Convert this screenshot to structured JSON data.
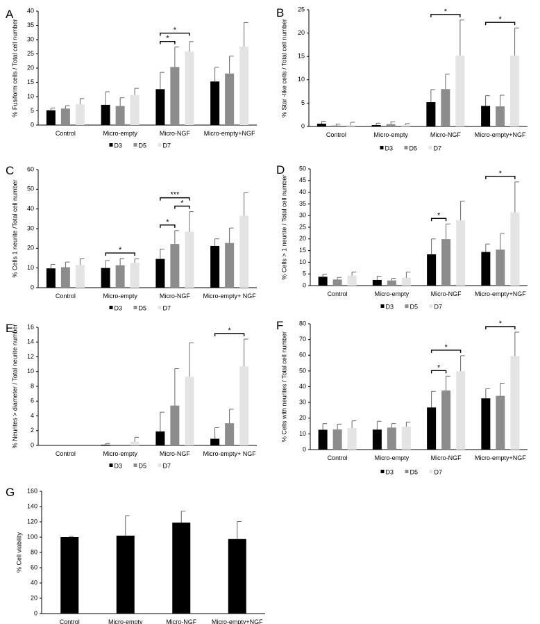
{
  "colors": {
    "D3": "#000000",
    "D5": "#8c8c8c",
    "D7": "#e4e4e4"
  },
  "chart_data": [
    {
      "panel_label": "A",
      "type": "bar",
      "ylabel": "% Fusiform cells / Total cell number",
      "ylim": [
        0,
        40
      ],
      "yticks": [
        0,
        5,
        10,
        15,
        20,
        25,
        30,
        35,
        40
      ],
      "categories": [
        "Control",
        "Micro-empty",
        "Micro-NGF",
        "Micro-empty+NGF"
      ],
      "series": [
        {
          "name": "D3",
          "values": [
            5.2,
            7.1,
            12.6,
            15.3
          ],
          "errors": [
            0.8,
            4.6,
            5.9,
            5.0
          ]
        },
        {
          "name": "D5",
          "values": [
            5.8,
            6.7,
            20.4,
            18.1
          ],
          "errors": [
            1.0,
            2.9,
            7.0,
            6.1
          ]
        },
        {
          "name": "D7",
          "values": [
            7.3,
            10.6,
            25.8,
            27.5
          ],
          "errors": [
            2.0,
            2.3,
            3.5,
            8.5
          ]
        }
      ],
      "significance": [
        {
          "category": 2,
          "from": "D3",
          "to": "D5",
          "label": "*"
        },
        {
          "category": 2,
          "from": "D3",
          "to": "D7",
          "label": "*"
        }
      ]
    },
    {
      "panel_label": "B",
      "type": "bar",
      "ylabel": "% Star -like cells / Total cell number",
      "ylim": [
        0,
        25
      ],
      "yticks": [
        0,
        5,
        10,
        15,
        20,
        25
      ],
      "categories": [
        "Control",
        "Micro-empty",
        "Micro-NGF",
        "Micro-empty+NGF"
      ],
      "series": [
        {
          "name": "D3",
          "values": [
            0.6,
            0.3,
            5.2,
            4.4
          ],
          "errors": [
            0.5,
            0.4,
            2.7,
            2.2
          ]
        },
        {
          "name": "D5",
          "values": [
            0.2,
            0.5,
            8.0,
            4.3
          ],
          "errors": [
            0.3,
            0.5,
            3.2,
            2.4
          ]
        },
        {
          "name": "D7",
          "values": [
            0.3,
            0.3,
            15.2,
            15.2
          ],
          "errors": [
            0.6,
            0.3,
            7.6,
            5.9
          ]
        }
      ],
      "significance": [
        {
          "category": 2,
          "from": "D3",
          "to": "D7",
          "label": "*"
        },
        {
          "category": 3,
          "from": "D3",
          "to": "D7",
          "label": "*"
        }
      ]
    },
    {
      "panel_label": "C",
      "type": "bar",
      "ylabel": "% Cells 1 neurite /Total cell number",
      "ylim": [
        0,
        60
      ],
      "yticks": [
        0,
        10,
        20,
        30,
        40,
        50,
        60
      ],
      "categories": [
        "Control",
        "Micro-empty",
        "Micro-NGF",
        "Micro-empty+ NGF"
      ],
      "series": [
        {
          "name": "D3",
          "values": [
            9.8,
            10.0,
            14.6,
            21.2
          ],
          "errors": [
            2.0,
            3.8,
            5.0,
            3.6
          ]
        },
        {
          "name": "D5",
          "values": [
            10.4,
            11.4,
            22.2,
            22.7
          ],
          "errors": [
            2.6,
            3.4,
            6.8,
            7.6
          ]
        },
        {
          "name": "D7",
          "values": [
            11.5,
            12.6,
            28.5,
            36.6
          ],
          "errors": [
            3.2,
            2.0,
            10.1,
            11.7
          ]
        }
      ],
      "significance": [
        {
          "category": 1,
          "from": "D3",
          "to": "D7",
          "label": "*"
        },
        {
          "category": 2,
          "from": "D3",
          "to": "D5",
          "label": "*"
        },
        {
          "category": 2,
          "from": "D3",
          "to": "D7",
          "label": "***"
        },
        {
          "category": 2,
          "from": "D5",
          "to": "D7",
          "label": "*"
        }
      ]
    },
    {
      "panel_label": "D",
      "type": "bar",
      "ylabel": "% Cells > 1 neurite / Total cell number",
      "ylim": [
        0,
        50
      ],
      "yticks": [
        0,
        5,
        10,
        15,
        20,
        25,
        30,
        35,
        40,
        45,
        50
      ],
      "categories": [
        "Control",
        "Micro-empty",
        "Micro-NGF",
        "Micro-empty+NGF"
      ],
      "series": [
        {
          "name": "D3",
          "values": [
            3.8,
            2.4,
            13.4,
            14.4
          ],
          "errors": [
            1.1,
            1.6,
            6.6,
            3.4
          ]
        },
        {
          "name": "D5",
          "values": [
            2.6,
            2.2,
            19.9,
            15.4
          ],
          "errors": [
            0.9,
            0.9,
            6.5,
            6.9
          ]
        },
        {
          "name": "D7",
          "values": [
            4.3,
            3.4,
            28.0,
            31.4
          ],
          "errors": [
            1.5,
            2.4,
            8.2,
            13.0
          ]
        }
      ],
      "significance": [
        {
          "category": 2,
          "from": "D3",
          "to": "D5",
          "label": "*"
        },
        {
          "category": 3,
          "from": "D3",
          "to": "D7",
          "label": "*"
        }
      ]
    },
    {
      "panel_label": "E",
      "type": "bar",
      "ylabel": "% Neurites > diameter / Total neurite number",
      "ylim": [
        0,
        16
      ],
      "yticks": [
        0,
        2,
        4,
        6,
        8,
        10,
        12,
        14,
        16
      ],
      "categories": [
        "Control",
        "Micro-empty",
        "Micro-NGF",
        "Micro-empty+ NGF"
      ],
      "series": [
        {
          "name": "D3",
          "values": [
            0.0,
            0.1,
            1.9,
            0.9
          ],
          "errors": [
            0.0,
            0.15,
            2.6,
            1.5
          ]
        },
        {
          "name": "D5",
          "values": [
            0.0,
            0.0,
            5.4,
            3.0
          ],
          "errors": [
            0.0,
            0.0,
            5.0,
            1.9
          ]
        },
        {
          "name": "D7",
          "values": [
            0.0,
            0.5,
            9.3,
            10.7
          ],
          "errors": [
            0.0,
            0.6,
            4.6,
            3.7
          ]
        }
      ],
      "significance": [
        {
          "category": 3,
          "from": "D3",
          "to": "D7",
          "label": "*"
        }
      ]
    },
    {
      "panel_label": "F",
      "type": "bar",
      "ylabel": "% Cells with neurites / Total cell number",
      "ylim": [
        0,
        80
      ],
      "yticks": [
        0,
        10,
        20,
        30,
        40,
        50,
        60,
        70,
        80
      ],
      "categories": [
        "Control",
        "Micro-empty",
        "Micro-NGF",
        "Micro-empty+NGF"
      ],
      "series": [
        {
          "name": "D3",
          "values": [
            12.6,
            12.7,
            26.8,
            32.6
          ],
          "errors": [
            3.9,
            5.3,
            10.2,
            6.1
          ]
        },
        {
          "name": "D5",
          "values": [
            12.8,
            14.0,
            37.6,
            34.2
          ],
          "errors": [
            3.4,
            2.5,
            9.1,
            8.0
          ]
        },
        {
          "name": "D7",
          "values": [
            13.7,
            14.5,
            49.9,
            59.5
          ],
          "errors": [
            4.6,
            3.0,
            9.8,
            15.2
          ]
        }
      ],
      "significance": [
        {
          "category": 2,
          "from": "D3",
          "to": "D5",
          "label": "*"
        },
        {
          "category": 2,
          "from": "D3",
          "to": "D7",
          "label": "*"
        },
        {
          "category": 3,
          "from": "D3",
          "to": "D7",
          "label": "*"
        }
      ]
    },
    {
      "panel_label": "G",
      "type": "bar",
      "ylabel": "% Cell viability",
      "ylim": [
        0,
        160
      ],
      "yticks": [
        0,
        20,
        40,
        60,
        80,
        100,
        120,
        140,
        160
      ],
      "categories": [
        "Control",
        "Micro-empty",
        "Micro-NGF",
        "Micro-empty+NGF"
      ],
      "series": [
        {
          "values": [
            100.0,
            102.0,
            119.0,
            97.5
          ],
          "errors": [
            1.0,
            26.0,
            15.0,
            23.0
          ]
        }
      ],
      "significance": []
    }
  ]
}
